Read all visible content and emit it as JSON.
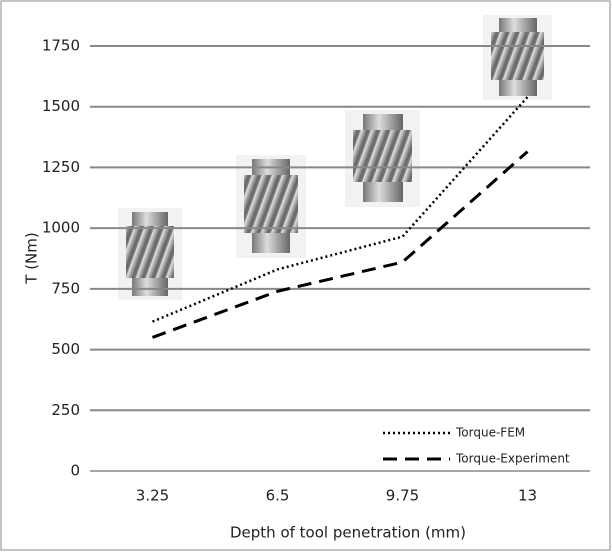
{
  "chart_data": {
    "type": "line",
    "x_label": "Depth of tool penetration (mm)",
    "y_label": "T (Nm)",
    "categories": [
      "3.25",
      "6.5",
      "9.75",
      "13"
    ],
    "series": [
      {
        "name": "Torque-FEM",
        "color": "#000000",
        "dash": "dotted",
        "values": [
          615,
          830,
          965,
          1540
        ]
      },
      {
        "name": "Torque-Experiment",
        "color": "#000000",
        "dash": "dashed",
        "values": [
          550,
          740,
          860,
          1315
        ]
      }
    ],
    "ylim": [
      0,
      1750
    ],
    "yticks": [
      0,
      250,
      500,
      750,
      1000,
      1250,
      1500,
      1750
    ],
    "grid": true,
    "legend": "lower right"
  }
}
